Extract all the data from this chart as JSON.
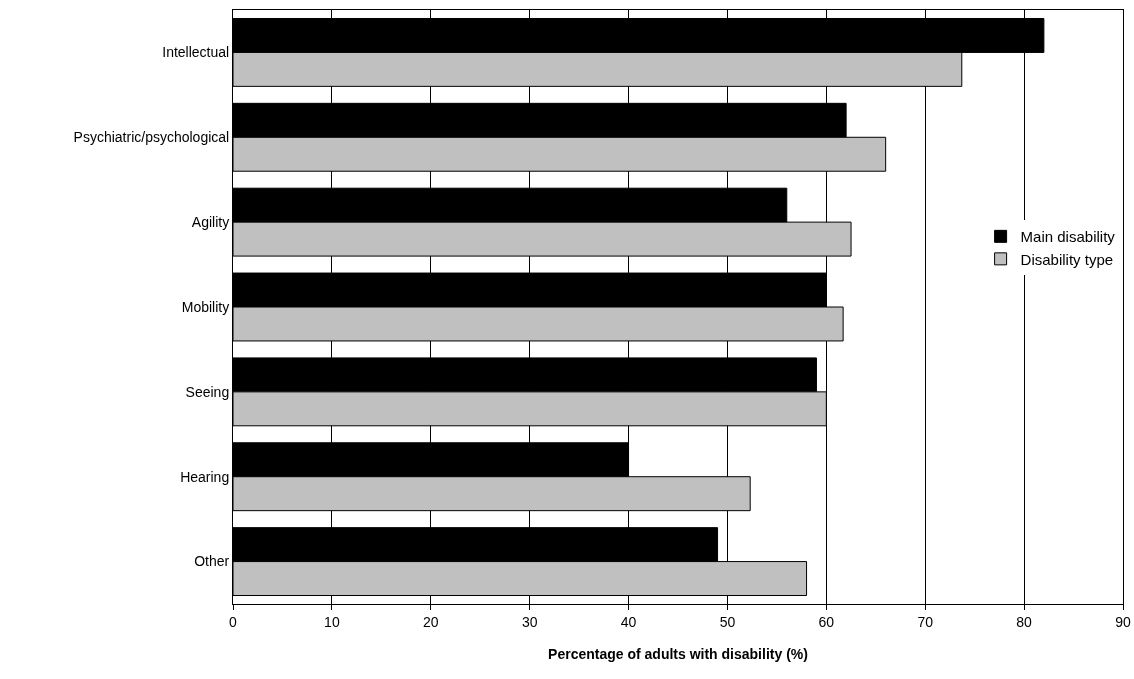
{
  "chart_data": {
    "type": "bar",
    "orientation": "horizontal",
    "xlabel": "Percentage of adults with disability (%)",
    "categories": [
      "Intellectual",
      "Psychiatric/psychological",
      "Agility",
      "Mobility",
      "Seeing",
      "Hearing",
      "Other"
    ],
    "series": [
      {
        "name": "Main disability",
        "color": "#000000",
        "values": [
          82,
          62,
          56,
          60,
          59,
          40,
          49
        ]
      },
      {
        "name": "Disability type",
        "color": "#c0c0c0",
        "values": [
          73.7,
          66,
          62.5,
          61.7,
          60,
          52.3,
          58
        ]
      }
    ],
    "xlim": [
      0,
      90
    ],
    "xticks": [
      0,
      10,
      20,
      30,
      40,
      50,
      60,
      70,
      80,
      90
    ],
    "grid": "x",
    "legend": "right"
  }
}
